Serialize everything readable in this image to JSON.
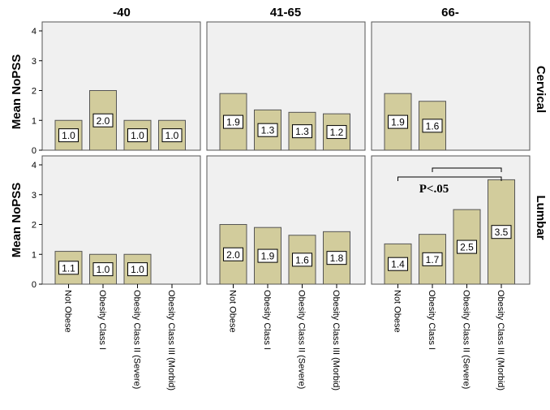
{
  "chart_data": {
    "type": "bar",
    "ylabel": "Mean NoPSS",
    "ylim": [
      0,
      4.3
    ],
    "yticks": [
      "0",
      "1",
      "2",
      "3",
      "4"
    ],
    "columns": [
      "-40",
      "41-65",
      "66-"
    ],
    "rows": [
      "Cervical",
      "Lumbar"
    ],
    "categories": [
      "Not Obese",
      "Obesity Class I",
      "Obesity Class II (Severe)",
      "Obesity Class III (Morbid)"
    ],
    "grid": false,
    "colors": {
      "bar": "#d2cc9c",
      "bar_edge": "#555555",
      "panel_bg": "#f0f0f0",
      "panel_edge": "#555555"
    },
    "panels": [
      {
        "row": "Cervical",
        "column": "-40",
        "values": [
          1.0,
          2.0,
          1.0,
          1.0
        ],
        "labels": [
          "1.0",
          "2.0",
          "1.0",
          "1.0"
        ]
      },
      {
        "row": "Cervical",
        "column": "41-65",
        "values": [
          1.9,
          1.35,
          1.27,
          1.22
        ],
        "labels": [
          "1.9",
          "1.3",
          "1.3",
          "1.2"
        ]
      },
      {
        "row": "Cervical",
        "column": "66-",
        "values": [
          1.9,
          1.64,
          null,
          null
        ],
        "labels": [
          "1.9",
          "1.6",
          "",
          ""
        ]
      },
      {
        "row": "Lumbar",
        "column": "-40",
        "values": [
          1.1,
          1.0,
          1.0,
          null
        ],
        "labels": [
          "1.1",
          "1.0",
          "1.0",
          ""
        ]
      },
      {
        "row": "Lumbar",
        "column": "41-65",
        "values": [
          2.0,
          1.9,
          1.64,
          1.76
        ],
        "labels": [
          "2.0",
          "1.9",
          "1.6",
          "1.8"
        ]
      },
      {
        "row": "Lumbar",
        "column": "66-",
        "values": [
          1.35,
          1.67,
          2.5,
          3.5
        ],
        "labels": [
          "1.4",
          "1.7",
          "2.5",
          "3.5"
        ]
      }
    ],
    "annotation": {
      "text": "P<.05",
      "row": "Lumbar",
      "column": "66-",
      "brackets": [
        [
          0,
          3
        ],
        [
          1,
          3
        ]
      ]
    }
  }
}
